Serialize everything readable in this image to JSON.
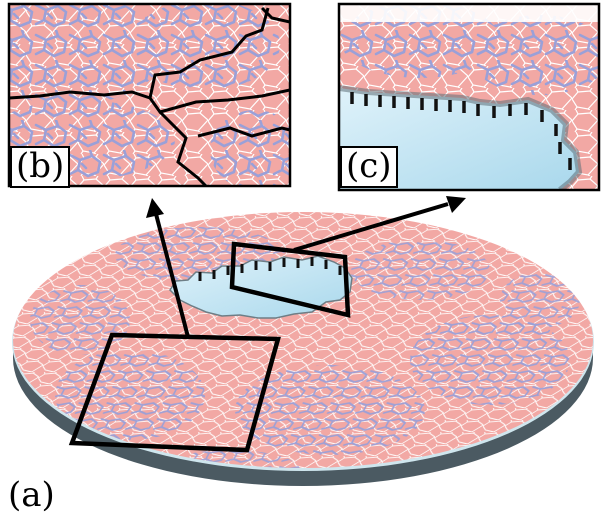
{
  "figure": {
    "labels": {
      "a": "(a)",
      "b": "(b)",
      "c": "(c)"
    },
    "colors": {
      "background": "#ffffff",
      "cell_fill": "#f2a8a4",
      "cell_edge": "#ffffff",
      "network": "#9aa0d8",
      "boundary": "#000000",
      "disk_side": "#4b5a62",
      "disk_rim": "#cfe6ee",
      "hole": "#c9e7f4"
    }
  }
}
